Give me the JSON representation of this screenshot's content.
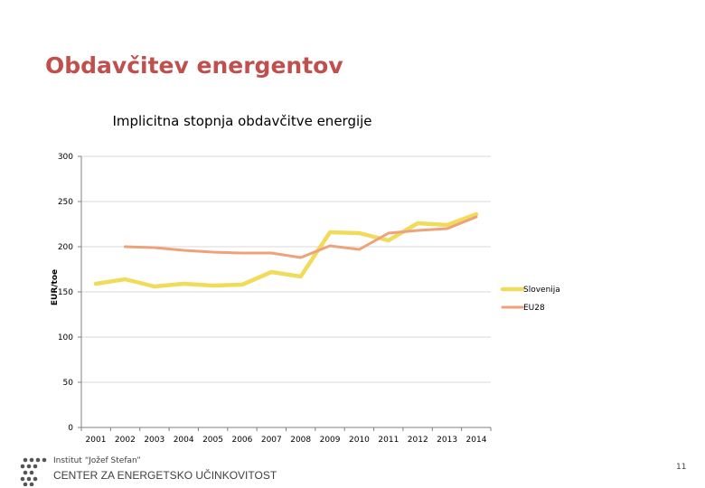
{
  "slide": {
    "title": "Obdavčitev energentov",
    "org_name": "Institut “Jožef Stefan”",
    "center_name": "CENTER ZA ENERGETSKO UČINKOVITOST",
    "page_number": "11"
  },
  "logo": {
    "icon": "ijs-dots-logo-icon"
  },
  "colors": {
    "title": "#c0504d",
    "slovenija": "#f0dc5a",
    "eu28": "#eda27b",
    "grid": "#d9d9d9"
  },
  "chart_data": {
    "type": "line",
    "title": "Implicitna stopnja obdavčitve energije",
    "xlabel": "",
    "ylabel": "EUR/toe",
    "categories": [
      "2001",
      "2002",
      "2003",
      "2004",
      "2005",
      "2006",
      "2007",
      "2008",
      "2009",
      "2010",
      "2011",
      "2012",
      "2013",
      "2014"
    ],
    "ylim": [
      0,
      300
    ],
    "yticks": [
      0,
      50,
      100,
      150,
      200,
      250,
      300
    ],
    "grid": true,
    "legend": "right",
    "series": [
      {
        "name": "Slovenija",
        "values": [
          159,
          164,
          156,
          159,
          157,
          158,
          172,
          167,
          216,
          215,
          207,
          226,
          224,
          236
        ]
      },
      {
        "name": "EU28",
        "values": [
          null,
          200,
          199,
          196,
          194,
          193,
          193,
          188,
          201,
          197,
          215,
          218,
          220,
          233
        ]
      }
    ]
  }
}
